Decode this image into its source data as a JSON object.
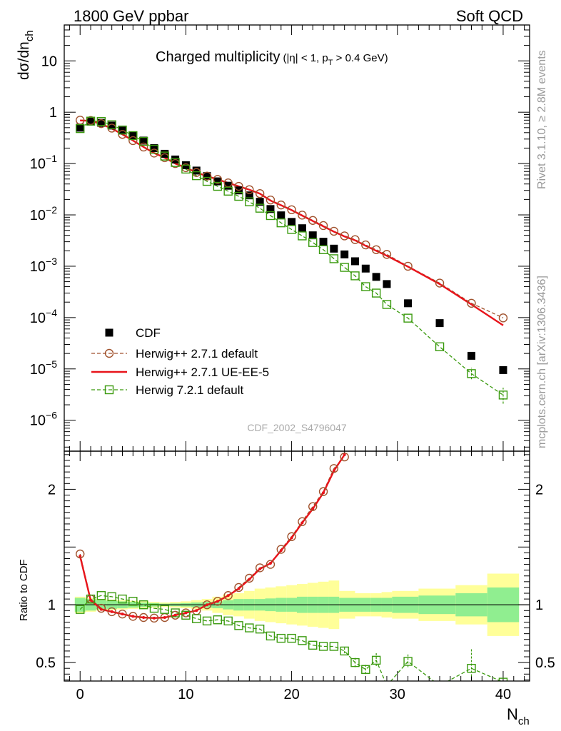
{
  "header": {
    "left": "1800 GeV ppbar",
    "right": "Soft QCD",
    "side_top": "Rivet 3.1.10, ≥ 2.8M events",
    "side_bottom": "mcplots.cern.ch [arXiv:1306.3436]",
    "analysis_id": "CDF_2002_S4796047"
  },
  "colors": {
    "data": "#000000",
    "herwig_default": "#a0522d",
    "herwig_ueee5": "#e8141b",
    "herwig7": "#3a9a0e",
    "band_inner": "#90ee90",
    "band_outer": "#ffff99"
  },
  "chart_data": [
    {
      "type": "scatter",
      "panel": "main",
      "title": "Charged multiplicity",
      "title_sub": "(|η| < 1, p",
      "title_sub_idx": "T",
      "title_sub_end": " > 0.4 GeV)",
      "ylabel": "dσ/dn",
      "ylabel_sub": "ch",
      "y_scale": "log",
      "xlim": [
        -1.5,
        42.5
      ],
      "ylim": [
        2.5e-07,
        50
      ],
      "x_ticks": [
        0,
        10,
        20,
        30,
        40
      ],
      "y_ticks": [
        {
          "value": 10,
          "base": "10",
          "exp": ""
        },
        {
          "value": 1,
          "base": "1",
          "exp": ""
        },
        {
          "value": 0.1,
          "base": "10",
          "exp": "−1"
        },
        {
          "value": 0.01,
          "base": "10",
          "exp": "−2"
        },
        {
          "value": 0.001,
          "base": "10",
          "exp": "−3"
        },
        {
          "value": 0.0001,
          "base": "10",
          "exp": "−4"
        },
        {
          "value": 1e-05,
          "base": "10",
          "exp": "−5"
        },
        {
          "value": 1e-06,
          "base": "10",
          "exp": "−6"
        }
      ],
      "legend_position": "bottom-left",
      "series": [
        {
          "name": "CDF",
          "style": "square-filled",
          "x": [
            0,
            1,
            2,
            3,
            4,
            5,
            6,
            7,
            8,
            9,
            10,
            11,
            12,
            13,
            14,
            15,
            16,
            17,
            18,
            19,
            20,
            21,
            22,
            23,
            24,
            25,
            26,
            27,
            28,
            29,
            31,
            34,
            37,
            40
          ],
          "y": [
            0.5,
            0.66,
            0.62,
            0.55,
            0.44,
            0.35,
            0.28,
            0.2,
            0.155,
            0.12,
            0.093,
            0.073,
            0.057,
            0.045,
            0.037,
            0.03,
            0.024,
            0.018,
            0.013,
            0.0098,
            0.0073,
            0.0055,
            0.004,
            0.003,
            0.0022,
            0.0017,
            0.00125,
            0.0009,
            0.00062,
            0.00045,
            0.00019,
            7.8e-05,
            1.8e-05,
            9.5e-06
          ]
        },
        {
          "name": "Herwig++ 2.7.1 default",
          "style": "circle-open-dashed",
          "x": [
            0,
            1,
            2,
            3,
            4,
            5,
            6,
            7,
            8,
            9,
            10,
            11,
            12,
            13,
            14,
            15,
            16,
            17,
            18,
            19,
            20,
            21,
            22,
            23,
            24,
            25,
            26,
            27,
            28,
            29,
            31,
            34,
            37,
            40
          ],
          "y": [
            0.7,
            0.69,
            0.6,
            0.49,
            0.37,
            0.28,
            0.21,
            0.16,
            0.13,
            0.1,
            0.083,
            0.067,
            0.057,
            0.049,
            0.042,
            0.036,
            0.031,
            0.026,
            0.0195,
            0.0156,
            0.0126,
            0.0099,
            0.0078,
            0.0062,
            0.0048,
            0.0039,
            0.0033,
            0.0026,
            0.0021,
            0.0017,
            0.001,
            0.00047,
            0.00019,
            9.85e-05
          ]
        },
        {
          "name": "Herwig++ 2.7.1 UE-EE-5",
          "style": "line-solid",
          "x": [
            0,
            1,
            2,
            3,
            4,
            5,
            6,
            7,
            8,
            9,
            10,
            11,
            12,
            13,
            14,
            15,
            16,
            17,
            18,
            19,
            20,
            21,
            22,
            23,
            24,
            25,
            26,
            27,
            28,
            29,
            31,
            34,
            37,
            40
          ],
          "y": [
            0.69,
            0.68,
            0.59,
            0.48,
            0.37,
            0.28,
            0.21,
            0.16,
            0.13,
            0.1,
            0.083,
            0.067,
            0.057,
            0.049,
            0.042,
            0.036,
            0.031,
            0.026,
            0.019,
            0.0154,
            0.0124,
            0.0097,
            0.0076,
            0.006,
            0.0047,
            0.0038,
            0.0032,
            0.0025,
            0.002,
            0.0016,
            0.00098,
            0.00045,
            0.00018,
            7.05e-05
          ]
        },
        {
          "name": "Herwig 7.2.1 default",
          "style": "square-open-dashed",
          "x": [
            0,
            1,
            2,
            3,
            4,
            5,
            6,
            7,
            8,
            9,
            10,
            11,
            12,
            13,
            14,
            15,
            16,
            17,
            18,
            19,
            20,
            21,
            22,
            23,
            24,
            25,
            26,
            27,
            28,
            29,
            31,
            34,
            37,
            40
          ],
          "y": [
            0.48,
            0.67,
            0.66,
            0.57,
            0.45,
            0.35,
            0.27,
            0.19,
            0.14,
            0.105,
            0.078,
            0.058,
            0.045,
            0.036,
            0.029,
            0.023,
            0.018,
            0.0135,
            0.0097,
            0.007,
            0.0052,
            0.0039,
            0.0029,
            0.0021,
            0.0014,
            0.00095,
            0.00065,
            0.0004,
            0.0003,
            0.00018,
            9.75e-05,
            2.7e-05,
            8.1e-06,
            3.1e-06
          ]
        }
      ]
    },
    {
      "type": "scatter",
      "panel": "ratio",
      "ylabel": "Ratio to CDF",
      "xlabel": "N",
      "xlabel_sub": "ch",
      "xlim": [
        -1.5,
        42.5
      ],
      "ylim": [
        0.34,
        2.33
      ],
      "y_ticks": [
        0.5,
        1,
        2
      ],
      "x_ticks": [
        0,
        10,
        20,
        30,
        40
      ],
      "reference_line": 1,
      "bands": {
        "edges": [
          -0.5,
          0.5,
          1.5,
          2.5,
          3.5,
          4.5,
          5.5,
          6.5,
          7.5,
          8.5,
          9.5,
          10.5,
          11.5,
          12.5,
          13.5,
          14.5,
          15.5,
          16.5,
          17.5,
          18.5,
          19.5,
          20.5,
          21.5,
          22.5,
          23.5,
          24.5,
          26,
          27.5,
          28.5,
          29.5,
          32,
          35.5,
          38.5,
          41.5
        ],
        "inner": [
          0.06,
          0.05,
          0.04,
          0.035,
          0.03,
          0.025,
          0.02,
          0.015,
          0.01,
          0.012,
          0.015,
          0.02,
          0.025,
          0.03,
          0.04,
          0.05,
          0.05,
          0.05,
          0.055,
          0.06,
          0.06,
          0.07,
          0.07,
          0.07,
          0.07,
          0.06,
          0.06,
          0.06,
          0.06,
          0.07,
          0.08,
          0.1,
          0.15,
          0.26
        ],
        "outer": [
          0.07,
          0.06,
          0.05,
          0.045,
          0.04,
          0.035,
          0.03,
          0.025,
          0.02,
          0.025,
          0.03,
          0.04,
          0.05,
          0.07,
          0.09,
          0.1,
          0.12,
          0.14,
          0.15,
          0.16,
          0.17,
          0.18,
          0.19,
          0.2,
          0.21,
          0.12,
          0.1,
          0.1,
          0.11,
          0.12,
          0.14,
          0.17,
          0.27,
          0.4
        ]
      },
      "series": [
        {
          "name": "Herwig++ 2.7.1 default",
          "x": [
            0,
            1,
            2,
            3,
            4,
            5,
            6,
            7,
            8,
            9,
            10,
            11,
            12,
            13,
            14,
            15,
            16,
            17,
            18,
            19,
            20,
            21,
            22,
            23,
            24,
            25
          ],
          "y": [
            1.44,
            1.05,
            0.97,
            0.94,
            0.92,
            0.9,
            0.89,
            0.885,
            0.89,
            0.91,
            0.93,
            0.95,
            1.0,
            1.03,
            1.08,
            1.15,
            1.23,
            1.32,
            1.35,
            1.48,
            1.59,
            1.72,
            1.85,
            1.98,
            2.18,
            2.28
          ]
        },
        {
          "name": "Herwig++ 2.7.1 UE-EE-5",
          "x": [
            0,
            1,
            2,
            3,
            4,
            5,
            6,
            7,
            8,
            9,
            10,
            11,
            12,
            13,
            14,
            15,
            16,
            17,
            18,
            19,
            20,
            21,
            22,
            23,
            24,
            25
          ],
          "y": [
            1.42,
            1.04,
            0.96,
            0.94,
            0.92,
            0.9,
            0.89,
            0.885,
            0.89,
            0.91,
            0.93,
            0.95,
            1.0,
            1.03,
            1.08,
            1.14,
            1.22,
            1.31,
            1.36,
            1.47,
            1.58,
            1.71,
            1.83,
            1.97,
            2.16,
            2.3
          ]
        },
        {
          "name": "Herwig 7.2.1 default",
          "x": [
            0,
            1,
            2,
            3,
            4,
            5,
            6,
            7,
            8,
            9,
            10,
            11,
            12,
            13,
            14,
            15,
            16,
            17,
            18,
            19,
            20,
            21,
            22,
            23,
            24,
            25,
            26,
            27,
            28,
            29,
            31,
            34,
            37,
            40
          ],
          "y": [
            0.96,
            1.05,
            1.08,
            1.07,
            1.05,
            1.03,
            1.0,
            0.97,
            0.96,
            0.93,
            0.91,
            0.88,
            0.86,
            0.87,
            0.86,
            0.82,
            0.8,
            0.79,
            0.73,
            0.71,
            0.71,
            0.69,
            0.65,
            0.64,
            0.64,
            0.6,
            0.5,
            0.44,
            0.52,
            0.3,
            0.51,
            0.3,
            0.45,
            0.33
          ]
        }
      ]
    }
  ]
}
